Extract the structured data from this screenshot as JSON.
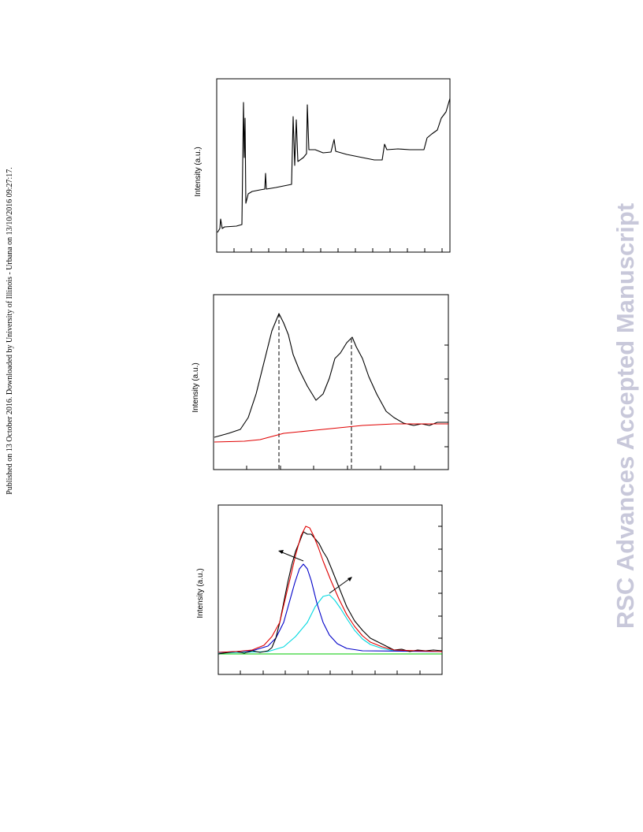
{
  "sidebar_note": "Published on 13 October 2016. Downloaded by University of Illinois - Urbana on 13/10/2016 09:27:17.",
  "watermark": "RSC Advances Accepted Manuscript",
  "figures": [
    {
      "y_label": "Intensity (a.u.)"
    },
    {
      "y_label": "Intensity (a.u.)"
    },
    {
      "y_label": "Intensity (a.u.)"
    }
  ]
}
